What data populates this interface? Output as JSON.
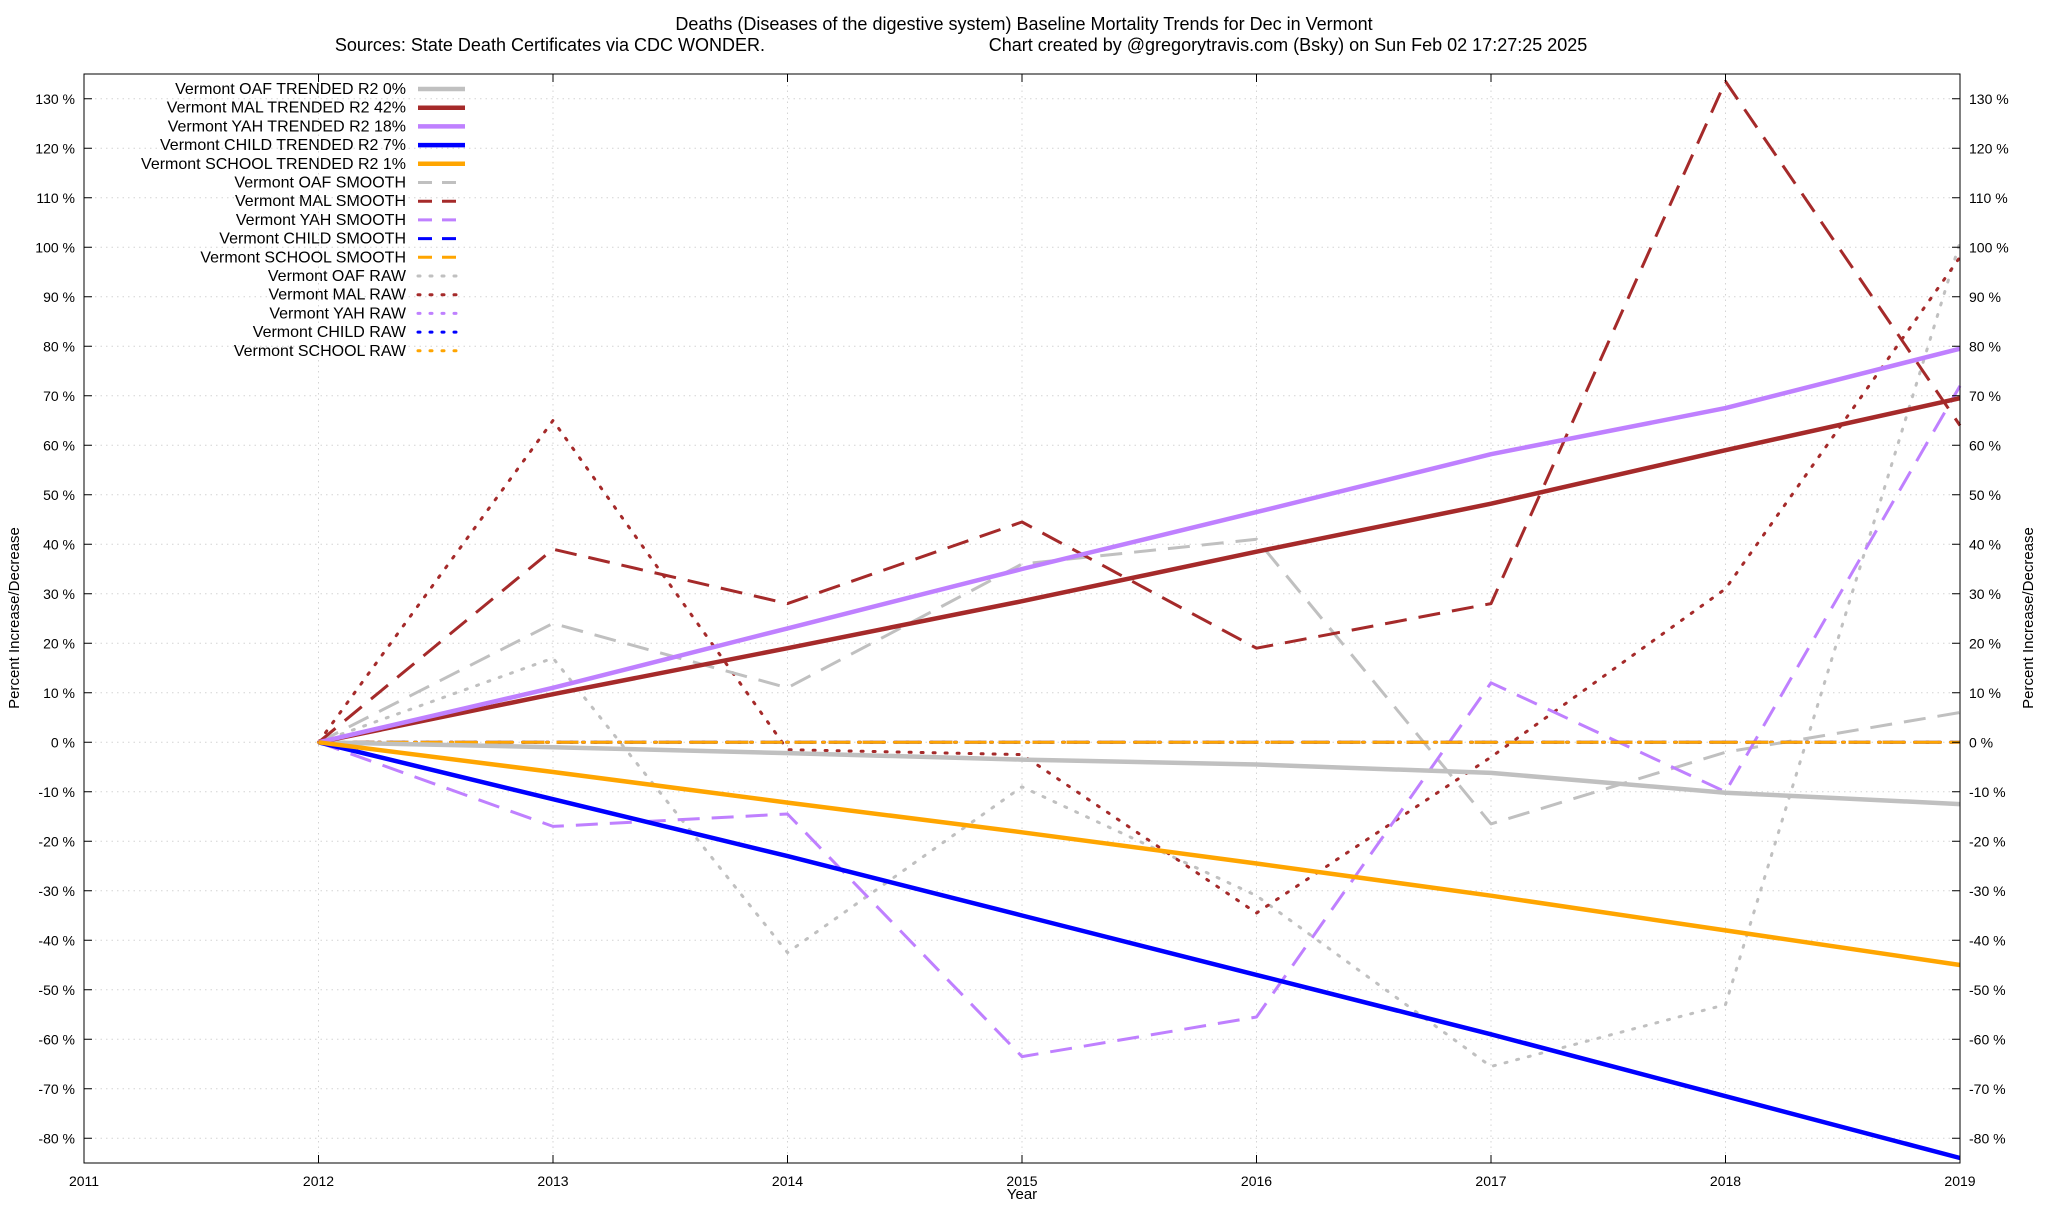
{
  "chart_data": {
    "type": "line",
    "title": "Deaths (Diseases of the digestive system)  Baseline Mortality Trends for Dec in Vermont",
    "subtitle_left": "Sources: State Death Certificates via CDC WONDER.",
    "subtitle_right": "Chart created by @gregorytravis.com (Bsky) on Sun Feb 02 17:27:25 2025",
    "xlabel": "Year",
    "ylabel": "Percent Increase/Decrease",
    "ylabel_right": "Percent Increase/Decrease",
    "xlim": [
      2011,
      2019
    ],
    "ylim": [
      -85,
      135
    ],
    "x_ticks": [
      2011,
      2012,
      2013,
      2014,
      2015,
      2016,
      2017,
      2018,
      2019
    ],
    "x_tick_labels": [
      "2011",
      "2012",
      "2013",
      "2014",
      "2015",
      "2016",
      "2017",
      "2018",
      "2019"
    ],
    "y_ticks": [
      -80,
      -70,
      -60,
      -50,
      -40,
      -30,
      -20,
      -10,
      0,
      10,
      20,
      30,
      40,
      50,
      60,
      70,
      80,
      90,
      100,
      110,
      120,
      130
    ],
    "y_tick_labels": [
      "-80 %",
      "-70 %",
      "-60 %",
      "-50 %",
      "-40 %",
      "-30 %",
      "-20 %",
      "-10 %",
      "0 %",
      "10 %",
      "20 %",
      "30 %",
      "40 %",
      "50 %",
      "60 %",
      "70 %",
      "80 %",
      "90 %",
      "100 %",
      "110 %",
      "120 %",
      "130 %"
    ],
    "grid": true,
    "legend_position": "top-left",
    "series": [
      {
        "name": "Vermont OAF TRENDED R2  0%",
        "style": "solid",
        "color": "#c0c0c0",
        "x": [
          2012,
          2013,
          2014,
          2015,
          2016,
          2017,
          2018,
          2019
        ],
        "y": [
          0,
          -1,
          -2.2,
          -3.5,
          -4.5,
          -6.2,
          -10.2,
          -12.5
        ]
      },
      {
        "name": "Vermont MAL TRENDED R2  42%",
        "style": "solid",
        "color": "#a52a2a",
        "x": [
          2012,
          2013,
          2014,
          2015,
          2016,
          2017,
          2018,
          2019
        ],
        "y": [
          0,
          9.7,
          19,
          28.5,
          38.5,
          48.2,
          59,
          69.5
        ]
      },
      {
        "name": "Vermont YAH TRENDED R2  18%",
        "style": "solid",
        "color": "#bf80ff",
        "x": [
          2012,
          2013,
          2014,
          2015,
          2016,
          2017,
          2018,
          2019
        ],
        "y": [
          0,
          11,
          23,
          35,
          46.5,
          58.2,
          67.5,
          79.5
        ]
      },
      {
        "name": "Vermont CHILD TRENDED R2  7%",
        "style": "solid",
        "color": "#0000ff",
        "x": [
          2012,
          2013,
          2014,
          2015,
          2016,
          2017,
          2018,
          2019
        ],
        "y": [
          0,
          -11.5,
          -23,
          -35,
          -47,
          -59,
          -71.5,
          -84
        ]
      },
      {
        "name": "Vermont SCHOOL TRENDED R2  1%",
        "style": "solid",
        "color": "#ffa500",
        "x": [
          2012,
          2013,
          2014,
          2015,
          2016,
          2017,
          2018,
          2019
        ],
        "y": [
          0,
          -6,
          -12.2,
          -18.2,
          -24.5,
          -31,
          -38,
          -45
        ]
      },
      {
        "name": "Vermont OAF SMOOTH",
        "style": "dashed",
        "color": "#c0c0c0",
        "x": [
          2012,
          2013,
          2014,
          2015,
          2016,
          2017,
          2018,
          2019
        ],
        "y": [
          0,
          24,
          11,
          36,
          41,
          -16.5,
          -2,
          6
        ]
      },
      {
        "name": "Vermont MAL SMOOTH",
        "style": "dashed",
        "color": "#a52a2a",
        "x": [
          2012,
          2013,
          2014,
          2015,
          2016,
          2017,
          2018,
          2019
        ],
        "y": [
          0,
          39,
          28,
          44.5,
          19,
          28,
          133.5,
          64
        ]
      },
      {
        "name": "Vermont YAH SMOOTH",
        "style": "dashed",
        "color": "#bf80ff",
        "x": [
          2012,
          2013,
          2014,
          2015,
          2016,
          2017,
          2018,
          2019
        ],
        "y": [
          0,
          -17,
          -14.5,
          -63.5,
          -55.5,
          12,
          -10,
          72
        ]
      },
      {
        "name": "Vermont CHILD SMOOTH",
        "style": "dashed",
        "color": "#0000ff",
        "x": [
          2012,
          2013,
          2014,
          2015,
          2016,
          2017,
          2018,
          2019
        ],
        "y": [
          0,
          0,
          0,
          0,
          0,
          0,
          0,
          0
        ]
      },
      {
        "name": "Vermont SCHOOL SMOOTH",
        "style": "dashed",
        "color": "#ffa500",
        "x": [
          2012,
          2013,
          2014,
          2015,
          2016,
          2017,
          2018,
          2019
        ],
        "y": [
          0,
          0,
          0,
          0,
          0,
          0,
          0,
          0
        ]
      },
      {
        "name": "Vermont OAF RAW",
        "style": "dotted",
        "color": "#c0c0c0",
        "x": [
          2012,
          2013,
          2014,
          2015,
          2016,
          2017,
          2018,
          2019
        ],
        "y": [
          0,
          17,
          -42.5,
          -9,
          -31,
          -65.5,
          -53,
          101
        ]
      },
      {
        "name": "Vermont MAL RAW",
        "style": "dotted",
        "color": "#a52a2a",
        "x": [
          2012,
          2013,
          2014,
          2015,
          2016,
          2017,
          2018,
          2019
        ],
        "y": [
          0,
          65,
          -1.5,
          -2.5,
          -34.5,
          -3,
          31,
          98
        ]
      },
      {
        "name": "Vermont YAH RAW",
        "style": "dotted",
        "color": "#bf80ff",
        "x": [
          2012,
          2013,
          2014,
          2015,
          2016,
          2017,
          2018,
          2019
        ],
        "y": [
          0,
          0,
          0,
          0,
          0,
          0,
          0,
          0
        ]
      },
      {
        "name": "Vermont CHILD RAW",
        "style": "dotted",
        "color": "#0000ff",
        "x": [
          2012,
          2013,
          2014,
          2015,
          2016,
          2017,
          2018,
          2019
        ],
        "y": [
          0,
          0,
          0,
          0,
          0,
          0,
          0,
          0
        ]
      },
      {
        "name": "Vermont SCHOOL RAW",
        "style": "dotted",
        "color": "#ffa500",
        "x": [
          2012,
          2013,
          2014,
          2015,
          2016,
          2017,
          2018,
          2019
        ],
        "y": [
          0,
          0,
          0,
          0,
          0,
          0,
          0,
          0
        ]
      }
    ]
  }
}
